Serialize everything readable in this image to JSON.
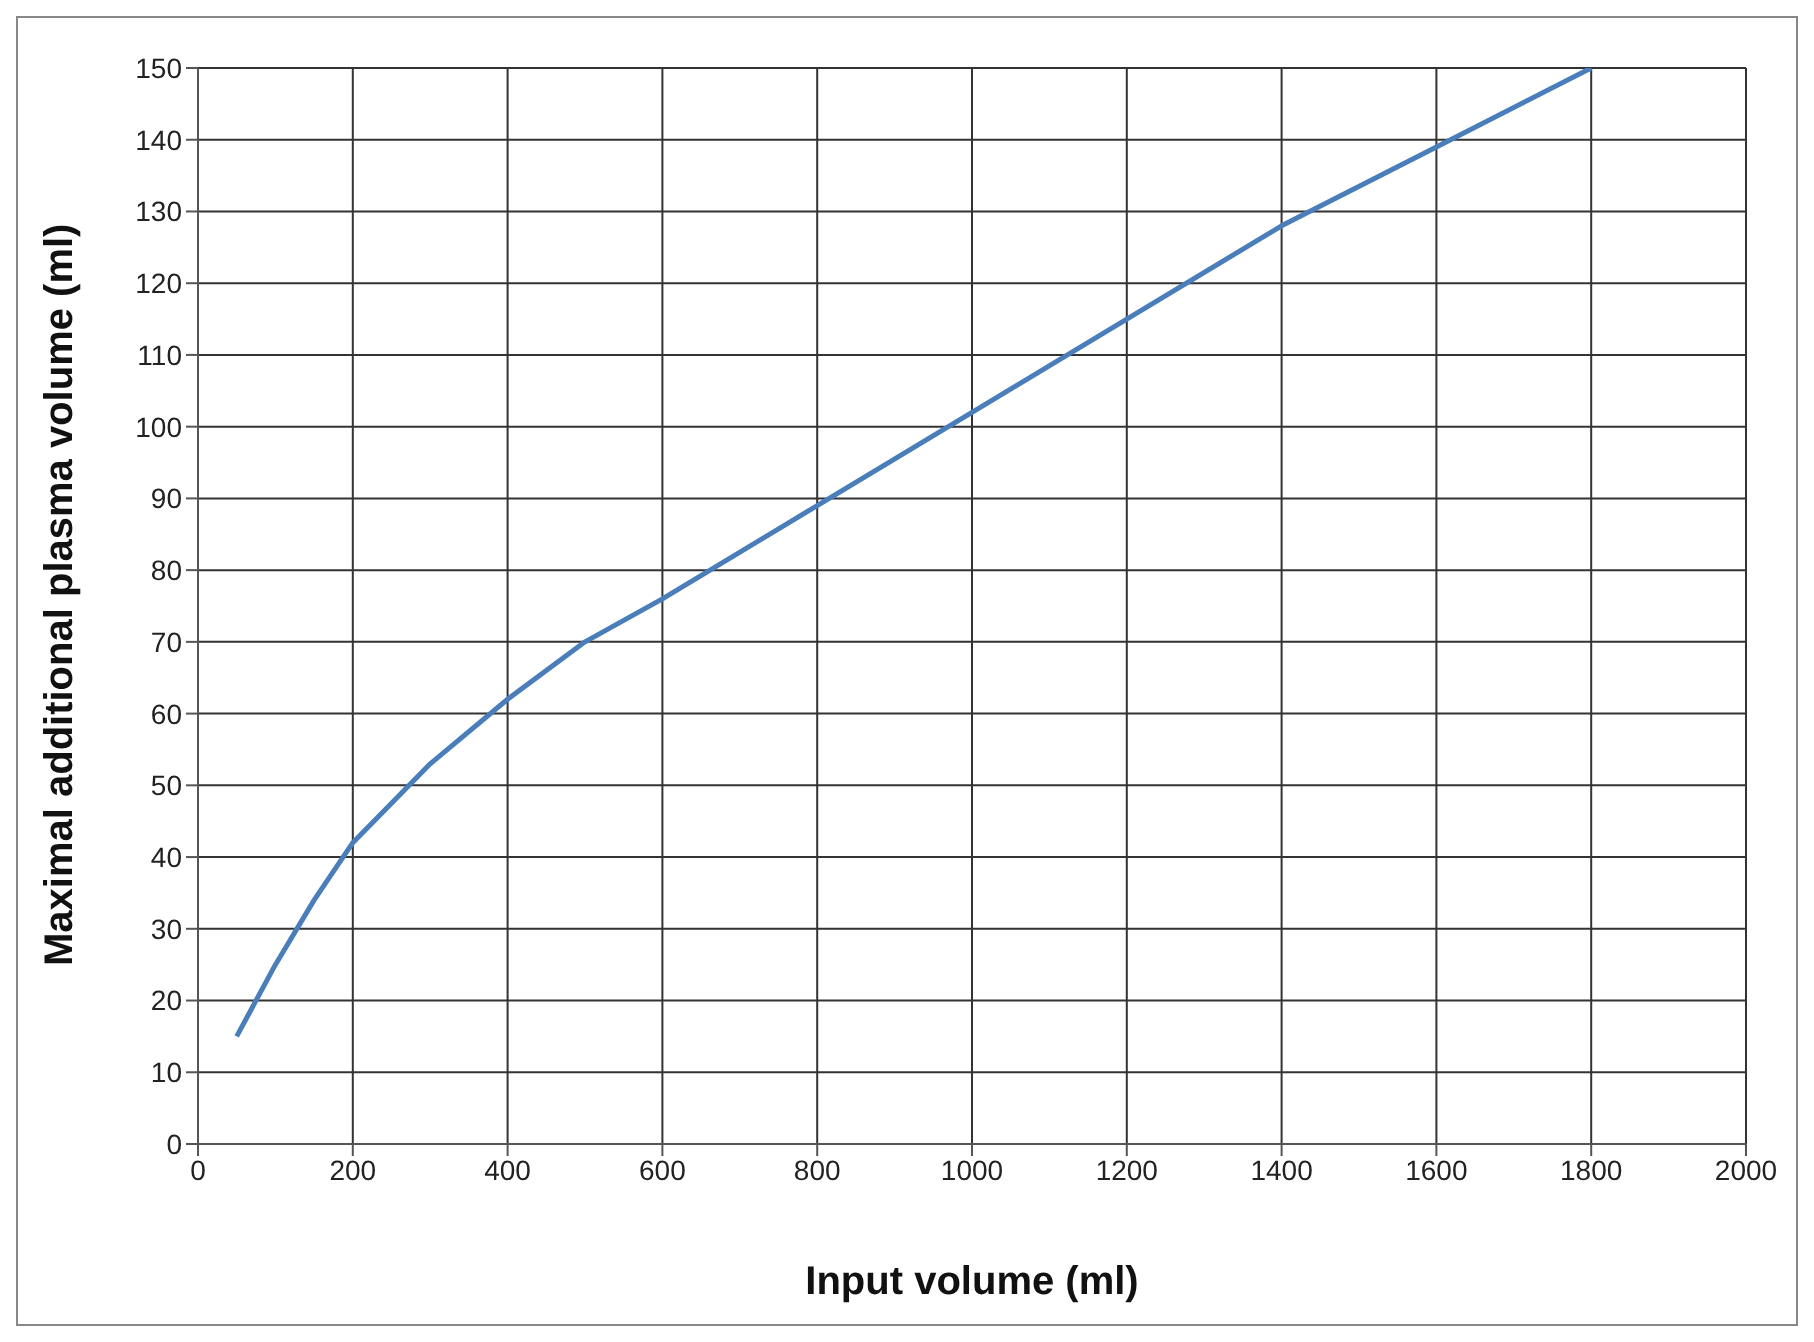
{
  "chart_data": {
    "type": "line",
    "xlabel": "Input volume (ml)",
    "ylabel": "Maximal additional plasma volume (ml)",
    "x": [
      50,
      100,
      150,
      200,
      300,
      400,
      500,
      600,
      800,
      1000,
      1200,
      1400,
      1600,
      1800
    ],
    "series": [
      {
        "color": "#4a7ebb",
        "values": [
          15,
          25,
          34,
          42,
          53,
          62,
          70,
          76,
          89,
          102,
          115,
          128,
          139,
          150
        ]
      }
    ],
    "xlim": [
      0,
      2000
    ],
    "xticks": [
      0,
      200,
      400,
      600,
      800,
      1000,
      1200,
      1400,
      1600,
      1800,
      2000
    ],
    "ylim": [
      0,
      150
    ],
    "yticks": [
      0,
      10,
      20,
      30,
      40,
      50,
      60,
      70,
      80,
      90,
      100,
      110,
      120,
      130,
      140,
      150
    ],
    "grid": true,
    "legend": false,
    "marker": "none",
    "line_style": "solid"
  }
}
